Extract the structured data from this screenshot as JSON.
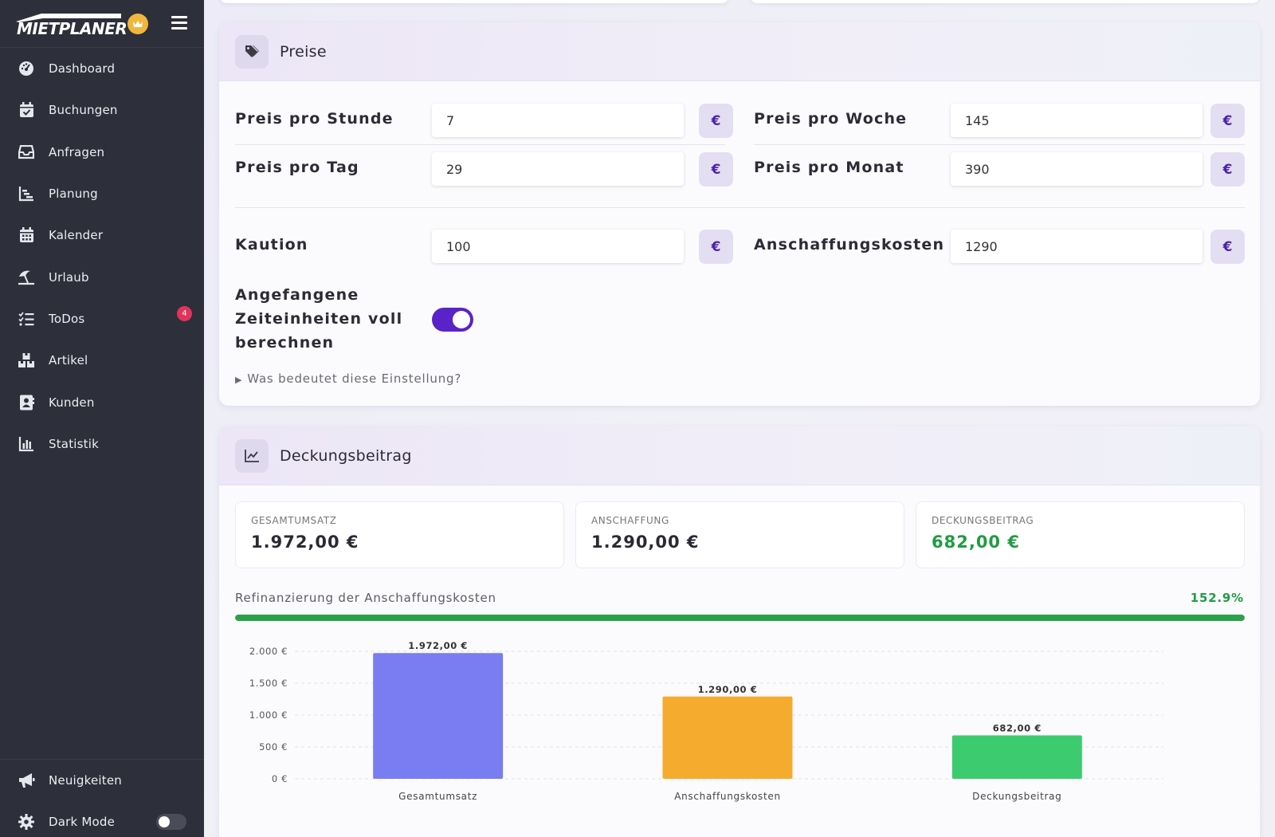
{
  "sidebar": {
    "logo_text": "MIETPLANER",
    "items": [
      {
        "label": "Dashboard",
        "icon": "dashboard-icon"
      },
      {
        "label": "Buchungen",
        "icon": "calendar-check-icon"
      },
      {
        "label": "Anfragen",
        "icon": "inbox-icon"
      },
      {
        "label": "Planung",
        "icon": "gantt-icon"
      },
      {
        "label": "Kalender",
        "icon": "calendar-icon"
      },
      {
        "label": "Urlaub",
        "icon": "umbrella-beach-icon"
      },
      {
        "label": "ToDos",
        "icon": "list-check-icon",
        "badge": "4"
      },
      {
        "label": "Artikel",
        "icon": "boxes-icon"
      },
      {
        "label": "Kunden",
        "icon": "address-book-icon"
      },
      {
        "label": "Statistik",
        "icon": "bar-chart-icon"
      }
    ],
    "bottom": [
      {
        "label": "Neuigkeiten",
        "icon": "megaphone-icon"
      },
      {
        "label": "Dark Mode",
        "icon": "gear-icon"
      }
    ]
  },
  "preise": {
    "title": "Preise",
    "stunde_label": "Preis pro Stunde",
    "stunde_value": "7",
    "woche_label": "Preis pro Woche",
    "woche_value": "145",
    "tag_label": "Preis pro Tag",
    "tag_value": "29",
    "monat_label": "Preis pro Monat",
    "monat_value": "390",
    "kaution_label": "Kaution",
    "kaution_value": "100",
    "anschaffung_label": "Anschaffungskosten",
    "anschaffung_value": "1290",
    "currency": "€",
    "toggle_label_1": "Angefangene",
    "toggle_label_2": "Zeiteinheiten voll",
    "toggle_label_3": "berechnen",
    "details_text": "Was bedeutet diese Einstellung?"
  },
  "deckung": {
    "title": "Deckungsbeitrag",
    "gesamt_caption": "GESAMTUMSATZ",
    "gesamt_value": "1.972,00 €",
    "anschaffung_caption": "ANSCHAFFUNG",
    "anschaffung_value": "1.290,00 €",
    "db_caption": "DECKUNGSBEITRAG",
    "db_value": "682,00 €",
    "progress_label": "Refinanzierung der Anschaffungskosten",
    "progress_pct": "152.9%",
    "progress_fill": 1.0
  },
  "chart_data": {
    "type": "bar",
    "categories": [
      "Gesamtumsatz",
      "Anschaffungskosten",
      "Deckungsbeitrag"
    ],
    "values": [
      1972,
      1290,
      682
    ],
    "value_labels": [
      "1.972,00 €",
      "1.290,00 €",
      "682,00 €"
    ],
    "colors": [
      "#7a7cf2",
      "#f4ab2e",
      "#3ccb6e"
    ],
    "y_ticks": [
      0,
      500,
      1000,
      1500,
      2000
    ],
    "y_tick_labels": [
      "0 €",
      "500 €",
      "1.000 €",
      "1.500 €",
      "2.000 €"
    ],
    "ylim": [
      0,
      2000
    ],
    "grid": true,
    "legend": "none"
  }
}
